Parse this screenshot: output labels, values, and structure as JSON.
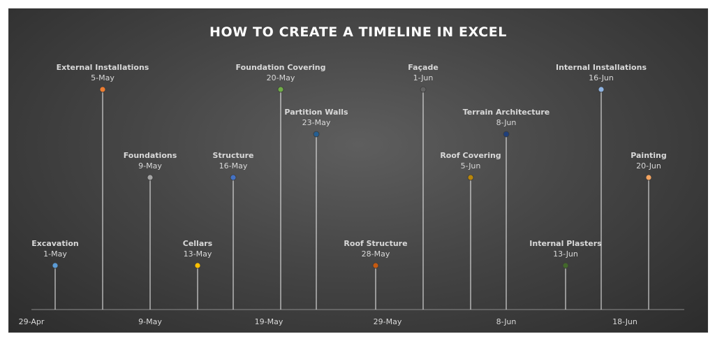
{
  "chart_data": {
    "type": "scatter",
    "title": "HOW TO CREATE A TIMELINE IN EXCEL",
    "xaxis": {
      "min": "2014-04-29",
      "max": "2014-06-28",
      "ticks": [
        "29-Apr",
        "9-May",
        "19-May",
        "29-May",
        "8-Jun",
        "18-Jun"
      ]
    },
    "grid": false,
    "legend": "none",
    "events": [
      {
        "name": "Excavation",
        "date": "1-May",
        "x": "2014-05-01",
        "height": 1,
        "color": "#5b9bd5"
      },
      {
        "name": "External Installations",
        "date": "5-May",
        "x": "2014-05-05",
        "height": 5,
        "color": "#ed7d31"
      },
      {
        "name": "Foundations",
        "date": "9-May",
        "x": "2014-05-09",
        "height": 3,
        "color": "#a5a5a5"
      },
      {
        "name": "Cellars",
        "date": "13-May",
        "x": "2014-05-13",
        "height": 1,
        "color": "#ffc000"
      },
      {
        "name": "Structure",
        "date": "16-May",
        "x": "2014-05-16",
        "height": 3,
        "color": "#4472c4"
      },
      {
        "name": "Foundation Covering",
        "date": "20-May",
        "x": "2014-05-20",
        "height": 5,
        "color": "#70ad47"
      },
      {
        "name": "Partition Walls",
        "date": "23-May",
        "x": "2014-05-23",
        "height": 4,
        "color": "#255e91"
      },
      {
        "name": "Roof Structure",
        "date": "28-May",
        "x": "2014-05-28",
        "height": 1,
        "color": "#c55a11"
      },
      {
        "name": "Façade",
        "date": "1-Jun",
        "x": "2014-06-01",
        "height": 5,
        "color": "#636363"
      },
      {
        "name": "Roof Covering",
        "date": "5-Jun",
        "x": "2014-06-05",
        "height": 3,
        "color": "#b8860b"
      },
      {
        "name": "Terrain Architecture",
        "date": "8-Jun",
        "x": "2014-06-08",
        "height": 4,
        "color": "#1f3f7a"
      },
      {
        "name": "Internal Plasters",
        "date": "13-Jun",
        "x": "2014-06-13",
        "height": 1,
        "color": "#43682b"
      },
      {
        "name": "Internal Installations",
        "date": "16-Jun",
        "x": "2014-06-16",
        "height": 5,
        "color": "#8db3e2"
      },
      {
        "name": "Painting",
        "date": "20-Jun",
        "x": "2014-06-20",
        "height": 3,
        "color": "#f4a460"
      }
    ]
  }
}
